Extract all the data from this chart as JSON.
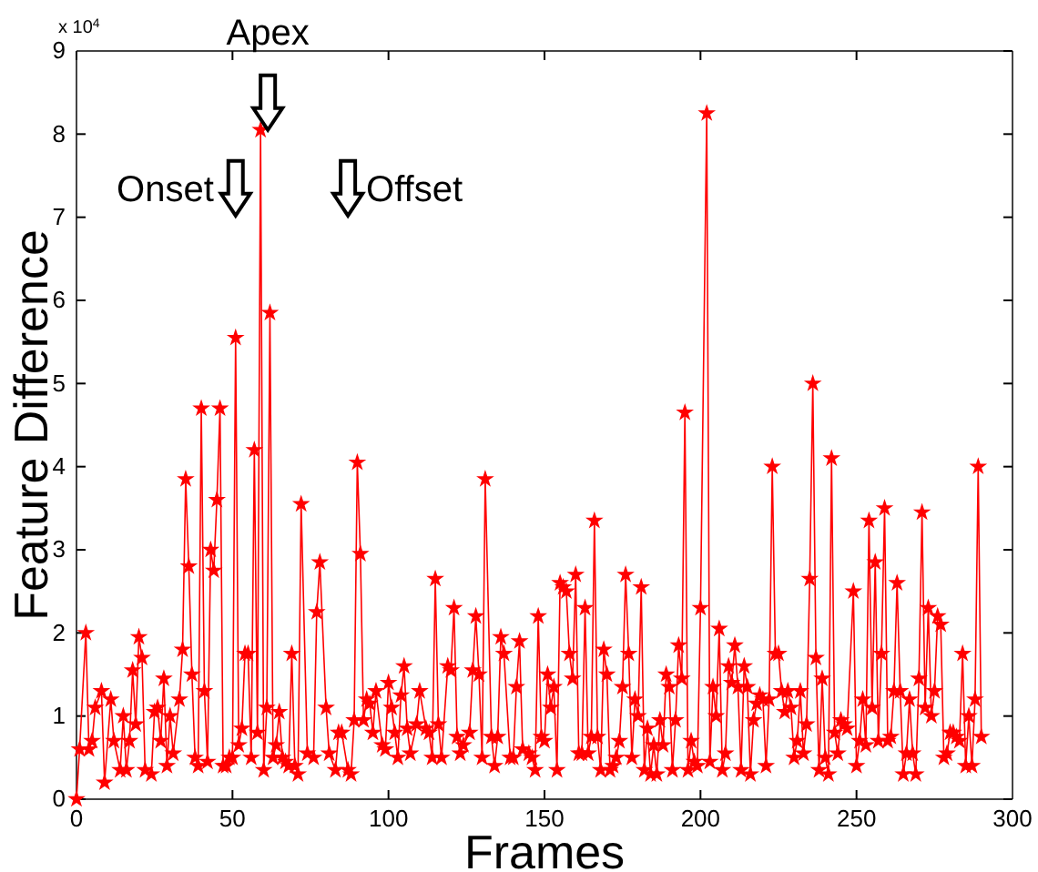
{
  "chart_data": {
    "type": "line",
    "xlabel": "Frames",
    "ylabel": "Feature Difference",
    "annotations": [
      "x 10$^{4}$",
      {
        "text": "Apex",
        "x": 59,
        "y": 8.05
      },
      "Onset",
      "Offset"
    ],
    "xlim": [
      0,
      300
    ],
    "xticks": [
      0,
      50,
      100,
      150,
      200,
      250,
      300
    ],
    "ylim": [
      0,
      9
    ],
    "yticks": [
      0,
      1,
      2,
      3,
      4,
      5,
      6,
      7,
      8,
      9
    ],
    "grid": false,
    "marker": "star",
    "line_style": "solid",
    "series": [
      {
        "color": "#ff0000",
        "x": [
          0,
          1,
          3,
          4,
          5,
          6,
          8,
          9,
          11,
          12,
          14,
          15,
          16,
          17,
          18,
          19,
          20,
          21,
          22,
          24,
          25,
          26,
          27,
          28,
          29,
          30,
          31,
          33,
          34,
          35,
          36,
          37,
          38,
          39,
          40,
          41,
          42,
          43,
          44,
          45,
          46,
          47,
          48,
          49,
          50,
          51,
          52,
          53,
          54,
          55,
          56,
          57,
          58,
          59,
          60,
          61,
          62,
          63,
          64,
          65,
          66,
          67,
          68,
          69,
          70,
          71,
          72,
          74,
          76,
          77,
          78,
          80,
          81,
          83,
          84,
          85,
          87,
          88,
          89,
          90,
          91,
          92,
          93,
          94,
          95,
          96,
          98,
          99,
          100,
          101,
          102,
          103,
          104,
          105,
          106,
          107,
          109,
          110,
          112,
          113,
          114,
          115,
          116,
          117,
          119,
          120,
          121,
          122,
          123,
          124,
          126,
          127,
          128,
          129,
          130,
          131,
          133,
          134,
          135,
          136,
          137,
          139,
          140,
          141,
          142,
          143,
          145,
          146,
          147,
          148,
          149,
          150,
          151,
          152,
          153,
          154,
          155,
          156,
          157,
          158,
          159,
          160,
          161,
          162,
          163,
          164,
          165,
          166,
          167,
          168,
          169,
          170,
          171,
          172,
          173,
          174,
          175,
          176,
          177,
          178,
          179,
          180,
          181,
          182,
          183,
          184,
          185,
          186,
          187,
          188,
          189,
          190,
          191,
          192,
          193,
          194,
          195,
          196,
          197,
          198,
          199,
          200,
          202,
          203,
          204,
          205,
          206,
          207,
          208,
          209,
          210,
          211,
          212,
          213,
          214,
          215,
          216,
          217,
          218,
          219,
          220,
          221,
          222,
          223,
          224,
          225,
          226,
          227,
          228,
          229,
          230,
          231,
          232,
          233,
          234,
          235,
          236,
          237,
          238,
          239,
          240,
          241,
          242,
          243,
          244,
          245,
          246,
          247,
          249,
          250,
          251,
          252,
          253,
          254,
          255,
          256,
          257,
          258,
          259,
          260,
          261,
          262,
          263,
          264,
          265,
          266,
          267,
          268,
          269,
          270,
          271,
          272,
          273,
          274,
          275,
          276,
          277,
          278,
          279,
          280,
          281,
          282,
          283,
          284,
          285,
          286,
          287,
          288,
          289,
          290
        ],
        "values": [
          0,
          0.6,
          2,
          0.6,
          0.7,
          1.1,
          1.3,
          0.2,
          1.2,
          0.7,
          0.35,
          1,
          0.35,
          0.7,
          1.55,
          0.9,
          1.95,
          1.7,
          0.35,
          0.3,
          1.05,
          1.1,
          0.7,
          1.45,
          0.4,
          1,
          0.55,
          1.2,
          1.8,
          3.85,
          2.8,
          1.5,
          0.5,
          0.4,
          4.7,
          1.3,
          0.45,
          3,
          2.75,
          3.6,
          4.7,
          0.4,
          0.4,
          0.5,
          0.5,
          5.55,
          0.65,
          0.85,
          1.75,
          1.75,
          0.5,
          4.2,
          0.8,
          8.05,
          0.35,
          1.1,
          5.85,
          0.5,
          0.65,
          1.05,
          0.5,
          0.45,
          0.4,
          1.75,
          0.4,
          0.3,
          3.55,
          0.55,
          0.5,
          2.25,
          2.85,
          1.1,
          0.55,
          0.35,
          0.8,
          0.8,
          0.35,
          0.3,
          0.95,
          4.05,
          2.95,
          0.95,
          1.2,
          1.15,
          0.8,
          1.3,
          0.65,
          0.6,
          1.4,
          1.1,
          0.8,
          0.5,
          1.25,
          1.6,
          0.85,
          0.55,
          0.9,
          1.3,
          0.85,
          0.8,
          0.5,
          2.65,
          0.9,
          0.5,
          1.6,
          1.55,
          2.3,
          0.75,
          0.55,
          0.65,
          0.8,
          1.55,
          2.2,
          1.5,
          0.5,
          3.85,
          0.75,
          0.4,
          0.75,
          1.95,
          1.75,
          0.5,
          0.5,
          1.35,
          1.9,
          0.6,
          0.55,
          0.5,
          0.35,
          2.2,
          0.75,
          0.7,
          1.5,
          1.1,
          1.35,
          0.35,
          2.6,
          2.55,
          2.5,
          1.75,
          1.45,
          2.7,
          0.55,
          0.55,
          2.3,
          0.55,
          0.75,
          3.35,
          0.75,
          0.35,
          1.8,
          1.5,
          0.35,
          0.4,
          0.5,
          0.7,
          1.35,
          2.7,
          1.75,
          0.5,
          1.2,
          1,
          2.55,
          0.35,
          0.85,
          0.3,
          0.65,
          0.3,
          0.95,
          0.65,
          1.5,
          1.35,
          0.35,
          0.95,
          1.85,
          1.45,
          4.65,
          0.35,
          0.7,
          0.45,
          0.4,
          2.3,
          8.25,
          0.45,
          1.35,
          1,
          2.05,
          0.35,
          0.55,
          1.6,
          1.4,
          1.85,
          1.35,
          0.35,
          1.6,
          1.35,
          0.3,
          0.95,
          1.15,
          1.25,
          1.2,
          0.4,
          1.2,
          4,
          1.75,
          1.75,
          1.3,
          1.05,
          1.3,
          1.1,
          0.5,
          0.7,
          1.3,
          0.55,
          0.9,
          2.65,
          5,
          1.7,
          0.35,
          1.45,
          0.5,
          0.3,
          4.1,
          0.8,
          0.55,
          0.95,
          0.9,
          0.85,
          2.5,
          0.4,
          0.7,
          1.2,
          0.65,
          3.35,
          1.1,
          2.85,
          0.7,
          1.75,
          3.5,
          0.7,
          0.75,
          1.3,
          2.6,
          1.3,
          0.3,
          0.55,
          1.2,
          0.55,
          0.3,
          1.45,
          3.45,
          1.1,
          2.3,
          1,
          1.3,
          2.2,
          2.1,
          0.5,
          0.55,
          0.8,
          0.8,
          0.75,
          0.7,
          1.75,
          0.4,
          1,
          0.4,
          1.2,
          4,
          0.75
        ]
      }
    ]
  }
}
